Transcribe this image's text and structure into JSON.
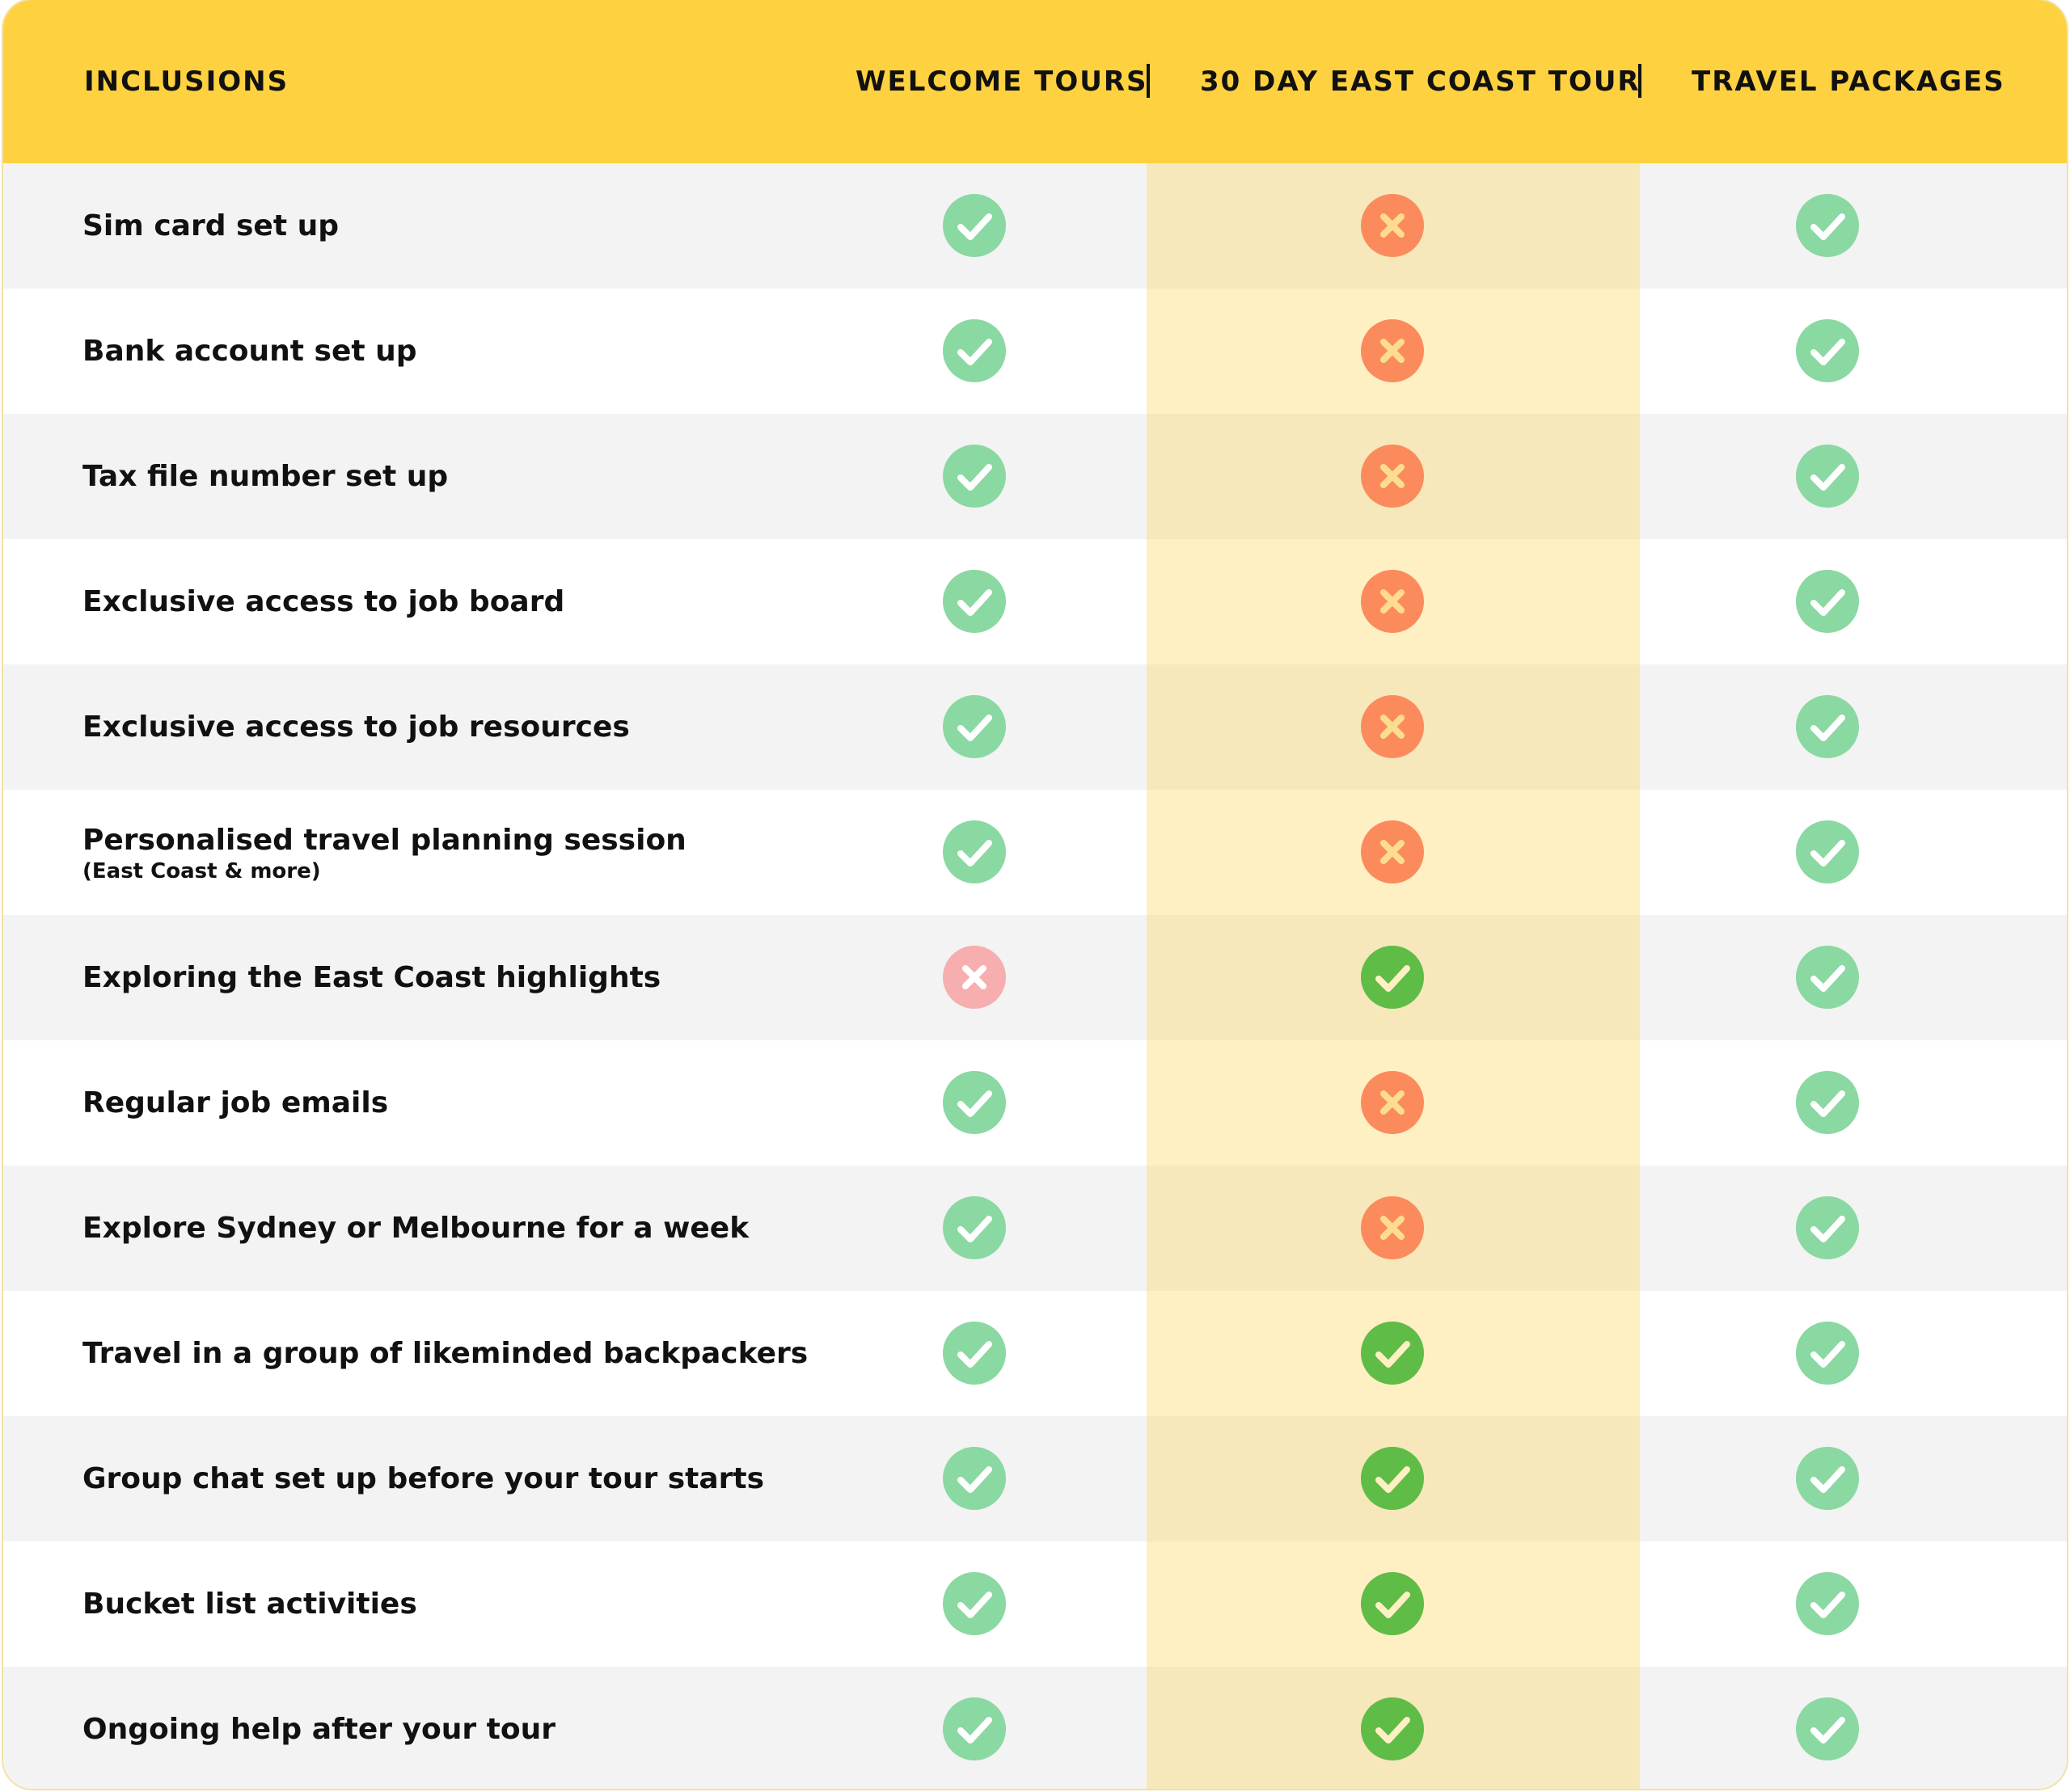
{
  "header": {
    "inclusions": "INCLUSIONS",
    "col1": "WELCOME TOURS",
    "col2": "30 DAY EAST COAST TOUR",
    "col3": "TRAVEL PACKAGES"
  },
  "colors": {
    "header_bg": "#fdd140",
    "check_light": "#8ad8a2",
    "check_dark": "#16b34a",
    "cross": "#fb6a6a",
    "cross_light": "#f6aeae"
  },
  "rows": [
    {
      "label": "Sim card set up",
      "sub": "",
      "welcome": "check",
      "east_coast": "cross",
      "packages": "check"
    },
    {
      "label": "Bank account set up",
      "sub": "",
      "welcome": "check",
      "east_coast": "cross",
      "packages": "check"
    },
    {
      "label": "Tax file number set up",
      "sub": "",
      "welcome": "check",
      "east_coast": "cross",
      "packages": "check"
    },
    {
      "label": "Exclusive access to job board",
      "sub": "",
      "welcome": "check",
      "east_coast": "cross",
      "packages": "check"
    },
    {
      "label": "Exclusive access to job resources",
      "sub": "",
      "welcome": "check",
      "east_coast": "cross",
      "packages": "check"
    },
    {
      "label": "Personalised travel planning session",
      "sub": "(East Coast & more)",
      "welcome": "check",
      "east_coast": "cross",
      "packages": "check"
    },
    {
      "label": "Exploring the East Coast highlights",
      "sub": "",
      "welcome": "cross-light",
      "east_coast": "check-dark",
      "packages": "check"
    },
    {
      "label": "Regular job emails",
      "sub": "",
      "welcome": "check",
      "east_coast": "cross",
      "packages": "check"
    },
    {
      "label": "Explore Sydney or Melbourne for a week",
      "sub": "",
      "welcome": "check",
      "east_coast": "cross",
      "packages": "check"
    },
    {
      "label": "Travel in a group of likeminded backpackers",
      "sub": "",
      "welcome": "check",
      "east_coast": "check-dark",
      "packages": "check"
    },
    {
      "label": "Group chat set up before your tour starts",
      "sub": "",
      "welcome": "check",
      "east_coast": "check-dark",
      "packages": "check"
    },
    {
      "label": "Bucket list activities",
      "sub": "",
      "welcome": "check",
      "east_coast": "check-dark",
      "packages": "check"
    },
    {
      "label": "Ongoing help after your tour",
      "sub": "",
      "welcome": "check",
      "east_coast": "check-dark",
      "packages": "check"
    }
  ]
}
